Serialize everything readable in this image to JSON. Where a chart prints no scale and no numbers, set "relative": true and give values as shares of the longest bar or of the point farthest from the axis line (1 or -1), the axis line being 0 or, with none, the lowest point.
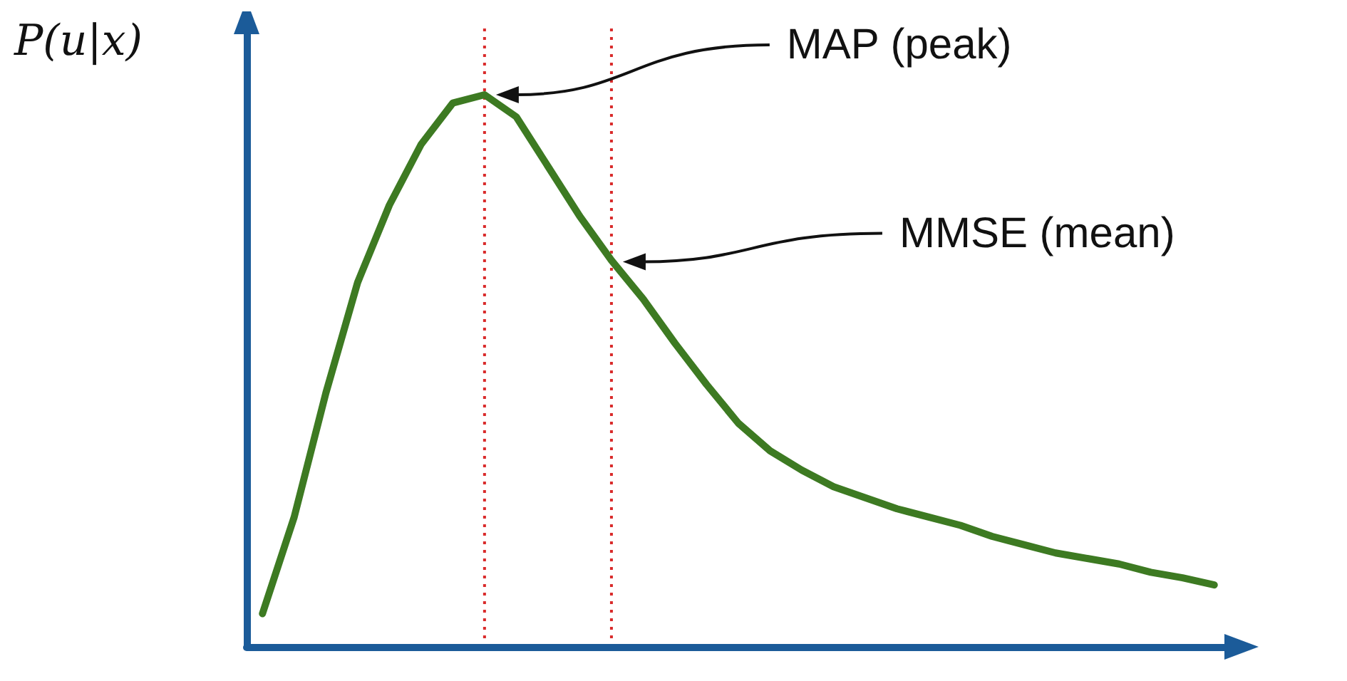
{
  "chart_data": {
    "type": "line",
    "relative": true,
    "ylabel": "P(u|x)",
    "marker": "none",
    "line_style": "solid",
    "categories": [
      null,
      null,
      null,
      null,
      null,
      null,
      null,
      null,
      null,
      null,
      null,
      null,
      null,
      null,
      null,
      null,
      null,
      null,
      null,
      null,
      null,
      null,
      null,
      null,
      null,
      null,
      null,
      null,
      null,
      null,
      null
    ],
    "series": [
      {
        "color": "#3d7a22",
        "values": [
          0.06,
          0.235,
          0.46,
          0.66,
          0.8,
          0.91,
          0.985,
          1,
          0.96,
          0.87,
          0.78,
          0.7,
          0.63,
          0.55,
          0.475,
          0.405,
          0.355,
          0.32,
          0.29,
          0.27,
          0.25,
          0.235,
          0.22,
          0.2,
          0.185,
          0.17,
          0.16,
          0.15,
          0.135,
          0.125,
          0.112
        ]
      }
    ],
    "annotations": [
      "MAP (peak)",
      "MMSE (mean)"
    ]
  }
}
